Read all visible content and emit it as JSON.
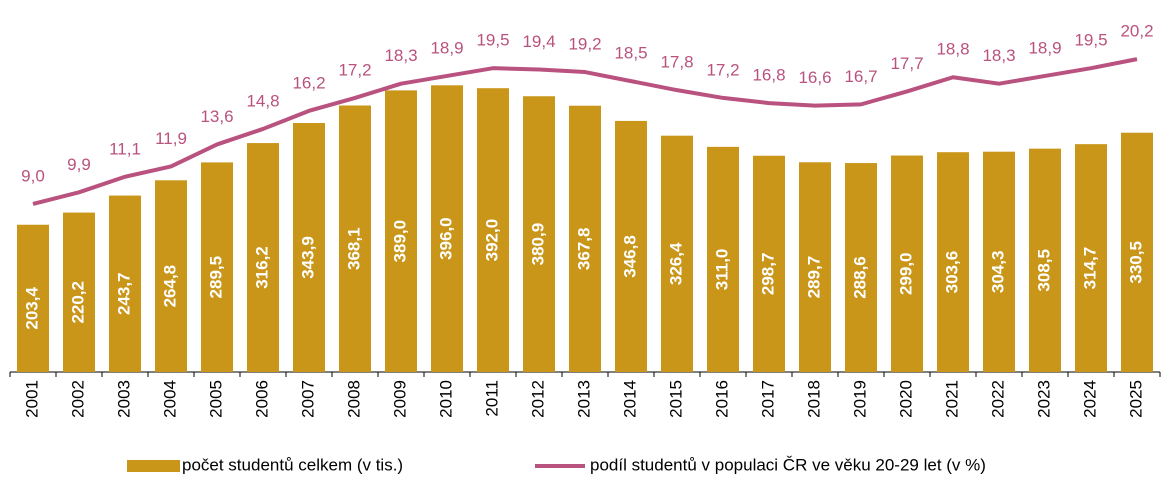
{
  "chart_data": {
    "type": "bar_line",
    "categories": [
      "2001",
      "2002",
      "2003",
      "2004",
      "2005",
      "2006",
      "2007",
      "2008",
      "2009",
      "2010",
      "2011",
      "2012",
      "2013",
      "2014",
      "2015",
      "2016",
      "2017",
      "2018",
      "2019",
      "2020",
      "2021",
      "2022",
      "2023",
      "2024",
      "2025"
    ],
    "series": [
      {
        "name": "počet studentů celkem (v tis.)",
        "type": "bar",
        "color": "#c9961a",
        "values": [
          203.4,
          220.2,
          243.7,
          264.8,
          289.5,
          316.2,
          343.9,
          368.1,
          389.0,
          396.0,
          392.0,
          380.9,
          367.8,
          346.8,
          326.4,
          311.0,
          298.7,
          289.7,
          288.6,
          299.0,
          303.6,
          304.3,
          308.5,
          314.7,
          330.5
        ],
        "value_labels": [
          "203,4",
          "220,2",
          "243,7",
          "264,8",
          "289,5",
          "316,2",
          "343,9",
          "368,1",
          "389,0",
          "396,0",
          "392,0",
          "380,9",
          "367,8",
          "346,8",
          "326,4",
          "311,0",
          "298,7",
          "289,7",
          "288,6",
          "299,0",
          "303,6",
          "304,3",
          "308,5",
          "314,7",
          "330,5"
        ]
      },
      {
        "name": "podíl studentů v populaci ČR ve věku 20-29 let (v %)",
        "type": "line",
        "color": "#b9527e",
        "axis": "y2",
        "values": [
          9.0,
          9.9,
          11.1,
          11.9,
          13.6,
          14.8,
          16.2,
          17.2,
          18.3,
          18.9,
          19.5,
          19.4,
          19.2,
          18.5,
          17.8,
          17.2,
          16.8,
          16.6,
          16.7,
          17.7,
          18.8,
          18.3,
          18.9,
          19.5,
          20.2
        ],
        "value_labels": [
          "9,0",
          "9,9",
          "11,1",
          "11,9",
          "13,6",
          "14,8",
          "16,2",
          "17,2",
          "18,3",
          "18,9",
          "19,5",
          "19,4",
          "19,2",
          "18,5",
          "17,8",
          "17,2",
          "16,8",
          "16,6",
          "16,7",
          "17,7",
          "18,8",
          "18,3",
          "18,9",
          "19,5",
          "20,2"
        ]
      }
    ],
    "ylim": [
      0,
      500
    ],
    "y2lim": [
      -4,
      24
    ],
    "legend": "bottom"
  }
}
